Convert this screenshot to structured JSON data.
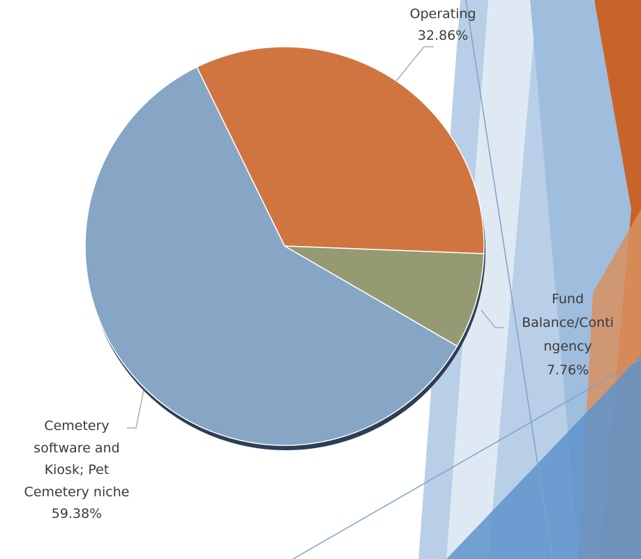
{
  "chart_data": {
    "type": "pie",
    "categories": [
      "Operating",
      "Fund Balance/Contingency",
      "Cemetery software and Kiosk; Pet Cemetery niche"
    ],
    "values": [
      32.86,
      7.76,
      59.38
    ],
    "value_labels": [
      "32.86%",
      "7.76%",
      "59.38%"
    ],
    "colors": [
      "#d07540",
      "#959a72",
      "#87a6c6"
    ]
  }
}
